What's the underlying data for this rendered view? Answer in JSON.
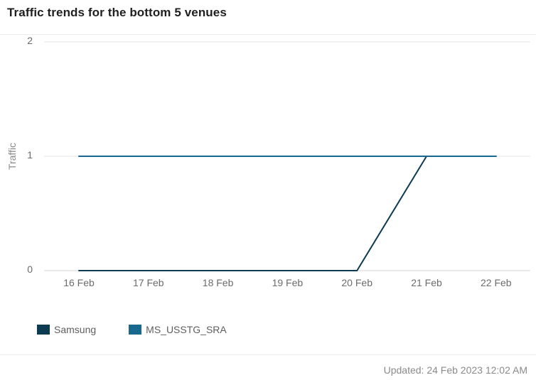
{
  "widget": {
    "title": "Traffic trends for the bottom 5 venues",
    "updated": "Updated: 24 Feb 2023 12:02 AM"
  },
  "colors": {
    "Samsung": "#0d3b52",
    "MS_USSTG_SRA": "#17688f",
    "grid": "#e6e6e6"
  },
  "chart_data": {
    "type": "line",
    "title": "Traffic trends for the bottom 5 venues",
    "xlabel": "",
    "ylabel": "Traffic",
    "x": [
      "16 Feb",
      "17 Feb",
      "18 Feb",
      "19 Feb",
      "20 Feb",
      "21 Feb",
      "22 Feb"
    ],
    "yticks": [
      "0",
      "1",
      "2"
    ],
    "ylim": [
      0,
      2
    ],
    "grid": true,
    "legend": "bottom-left",
    "series": [
      {
        "name": "Samsung",
        "values": [
          0,
          0,
          0,
          0,
          0,
          1,
          1
        ]
      },
      {
        "name": "MS_USSTG_SRA",
        "values": [
          1,
          1,
          1,
          1,
          1,
          1,
          1
        ]
      }
    ]
  }
}
